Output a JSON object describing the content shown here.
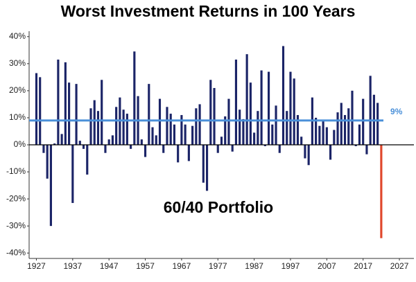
{
  "chart_data": {
    "type": "bar",
    "title": "Worst Investment Returns in 100 Years",
    "annotation": "60/40 Portfolio",
    "x": [
      1927,
      1928,
      1929,
      1930,
      1931,
      1932,
      1933,
      1934,
      1935,
      1936,
      1937,
      1938,
      1939,
      1940,
      1941,
      1942,
      1943,
      1944,
      1945,
      1946,
      1947,
      1948,
      1949,
      1950,
      1951,
      1952,
      1953,
      1954,
      1955,
      1956,
      1957,
      1958,
      1959,
      1960,
      1961,
      1962,
      1963,
      1964,
      1965,
      1966,
      1967,
      1968,
      1969,
      1970,
      1971,
      1972,
      1973,
      1974,
      1975,
      1976,
      1977,
      1978,
      1979,
      1980,
      1981,
      1982,
      1983,
      1984,
      1985,
      1986,
      1987,
      1988,
      1989,
      1990,
      1991,
      1992,
      1993,
      1994,
      1995,
      1996,
      1997,
      1998,
      1999,
      2000,
      2001,
      2002,
      2003,
      2004,
      2005,
      2006,
      2007,
      2008,
      2009,
      2010,
      2011,
      2012,
      2013,
      2014,
      2015,
      2016,
      2017,
      2018,
      2019,
      2020,
      2021,
      2022
    ],
    "values": [
      26.5,
      25,
      -3,
      -12.5,
      -30,
      0.5,
      31.5,
      4,
      30.5,
      23,
      -21.5,
      22.5,
      1.5,
      -1.5,
      -11,
      13.5,
      16.5,
      12.5,
      24,
      -3,
      2,
      3.5,
      14,
      17.5,
      13,
      11.5,
      -1.5,
      34.5,
      18,
      2,
      -4.5,
      22.5,
      6.5,
      3.5,
      17,
      -3,
      14,
      11.5,
      7.5,
      -6.5,
      11,
      7.5,
      -6,
      7,
      13.5,
      15,
      -14,
      -17,
      24,
      21,
      -3,
      3,
      10.5,
      17,
      -2.5,
      31.5,
      13,
      9.5,
      33.5,
      23,
      4.5,
      12.5,
      27.5,
      -0.5,
      27,
      7.5,
      14.5,
      -3,
      36.5,
      12.5,
      27,
      24.5,
      11,
      3,
      -5,
      -7.5,
      17.5,
      10,
      7,
      9,
      6.5,
      -5.5,
      5.5,
      12,
      15.5,
      11,
      13.5,
      20,
      -0.5,
      7.5,
      17,
      -3.5,
      25.5,
      18.5,
      15.5,
      -34.5
    ],
    "colors": [
      "#1b2467",
      "#1b2467",
      "#1b2467",
      "#1b2467",
      "#1b2467",
      "#1b2467",
      "#1b2467",
      "#1b2467",
      "#1b2467",
      "#1b2467",
      "#1b2467",
      "#1b2467",
      "#1b2467",
      "#1b2467",
      "#1b2467",
      "#1b2467",
      "#1b2467",
      "#1b2467",
      "#1b2467",
      "#1b2467",
      "#1b2467",
      "#1b2467",
      "#1b2467",
      "#1b2467",
      "#1b2467",
      "#1b2467",
      "#1b2467",
      "#1b2467",
      "#1b2467",
      "#1b2467",
      "#1b2467",
      "#1b2467",
      "#1b2467",
      "#1b2467",
      "#1b2467",
      "#1b2467",
      "#1b2467",
      "#1b2467",
      "#1b2467",
      "#1b2467",
      "#1b2467",
      "#1b2467",
      "#1b2467",
      "#1b2467",
      "#1b2467",
      "#1b2467",
      "#1b2467",
      "#1b2467",
      "#1b2467",
      "#1b2467",
      "#1b2467",
      "#1b2467",
      "#1b2467",
      "#1b2467",
      "#1b2467",
      "#1b2467",
      "#1b2467",
      "#1b2467",
      "#1b2467",
      "#1b2467",
      "#1b2467",
      "#1b2467",
      "#1b2467",
      "#1b2467",
      "#1b2467",
      "#1b2467",
      "#1b2467",
      "#1b2467",
      "#1b2467",
      "#1b2467",
      "#1b2467",
      "#1b2467",
      "#1b2467",
      "#1b2467",
      "#1b2467",
      "#1b2467",
      "#1b2467",
      "#1b2467",
      "#1b2467",
      "#1b2467",
      "#1b2467",
      "#1b2467",
      "#1b2467",
      "#1b2467",
      "#1b2467",
      "#1b2467",
      "#1b2467",
      "#1b2467",
      "#1b2467",
      "#1b2467",
      "#1b2467",
      "#1b2467",
      "#1b2467",
      "#1b2467",
      "#1b2467",
      "#e0472c"
    ],
    "reference_line": {
      "value": 9,
      "label": "9%",
      "color": "#4a90d9"
    },
    "xlim": [
      1925,
      2031
    ],
    "xticks": [
      1927,
      1937,
      1947,
      1957,
      1967,
      1977,
      1987,
      1997,
      2007,
      2017,
      2027
    ],
    "ylim": [
      -42,
      42
    ],
    "yticks": [
      {
        "value": -40,
        "label": "-40%"
      },
      {
        "value": -30,
        "label": "-30%"
      },
      {
        "value": -20,
        "label": "-20%"
      },
      {
        "value": -10,
        "label": "-10%"
      },
      {
        "value": 0,
        "label": "0%"
      },
      {
        "value": 10,
        "label": "10%"
      },
      {
        "value": 20,
        "label": "20%"
      },
      {
        "value": 30,
        "label": "30%"
      },
      {
        "value": 40,
        "label": "40%"
      }
    ]
  }
}
